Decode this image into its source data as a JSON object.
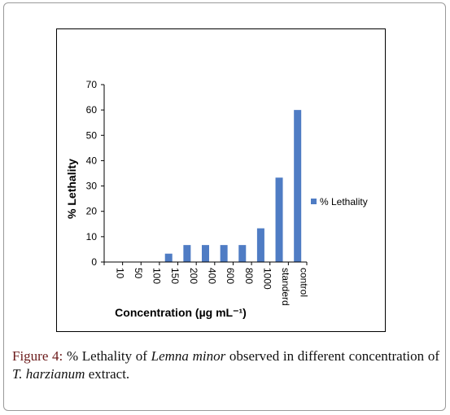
{
  "chart_data": {
    "type": "bar",
    "categories": [
      "10",
      "50",
      "100",
      "150",
      "200",
      "400",
      "600",
      "800",
      "1000",
      "standerd",
      "control"
    ],
    "series": [
      {
        "name": "% Lethality",
        "values": [
          0,
          0,
          0,
          3.3,
          6.7,
          6.7,
          6.7,
          6.7,
          13.3,
          33.3,
          60
        ]
      }
    ],
    "xlabel": "Concentration (µg mL⁻¹)",
    "ylabel": "% Lethality",
    "yticks": [
      "0",
      "10",
      "20",
      "30",
      "40",
      "50",
      "60",
      "70"
    ],
    "ylim": [
      0,
      70
    ],
    "legend": {
      "position": "right"
    },
    "grid": false,
    "bar_color": "#4f7cc4"
  },
  "caption": {
    "label": "Figure 4:",
    "part1": " % Lethality of ",
    "species": "Lemna minor",
    "part2": " observed in different concentration of ",
    "organism": "T. harzianum",
    "part3": " extract."
  }
}
